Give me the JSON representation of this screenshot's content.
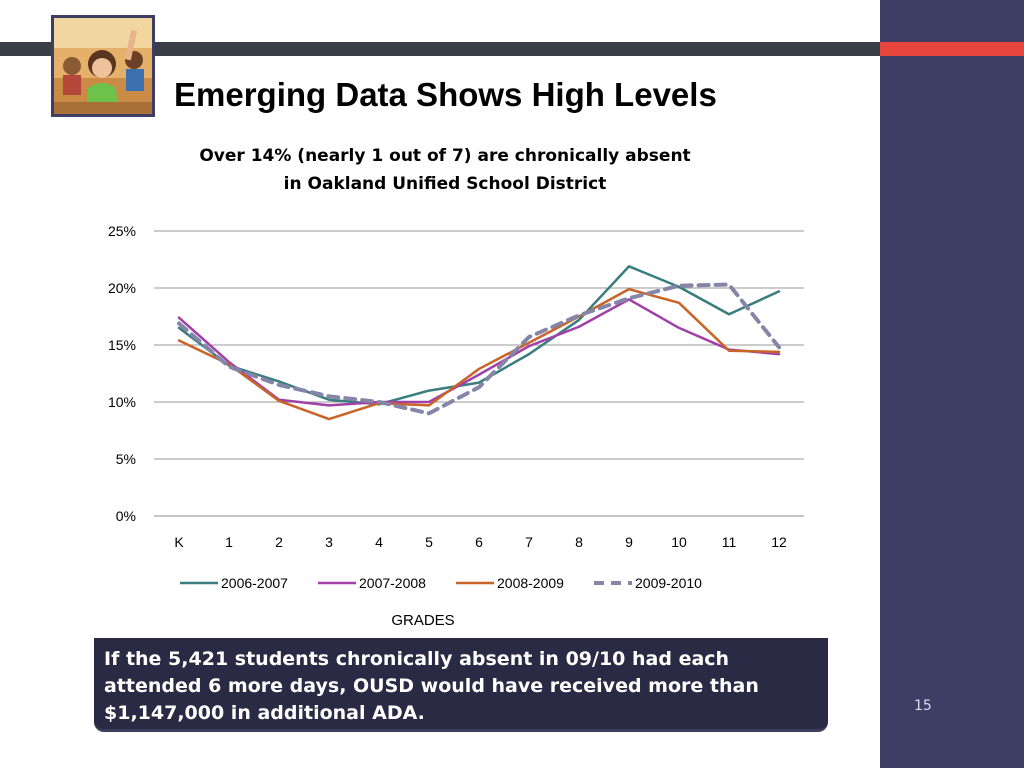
{
  "slide": {
    "title": "Emerging Data Shows High Levels",
    "callout_lines": [
      "If the 5,421 students chronically absent in 09/10 had each",
      "attended 6 more days, OUSD would have received more than",
      "$1,147,000 in additional ADA."
    ],
    "slide_number": "15",
    "photo": "classroom-student-photo",
    "colors": {
      "side_panel": "#3e3d66",
      "top_bar": "#3a3f47",
      "accent": "#e8453c",
      "callout": "#2b2a45"
    }
  },
  "chart_data": {
    "type": "line",
    "title_lines": [
      "Over 14%  (nearly 1 out of 7) are chronically absent",
      "in Oakland Unified School District"
    ],
    "xlabel": "GRADES",
    "ylabel": "",
    "categories": [
      "K",
      "1",
      "2",
      "3",
      "4",
      "5",
      "6",
      "7",
      "8",
      "9",
      "10",
      "11",
      "12"
    ],
    "yticks": [
      "0%",
      "5%",
      "10%",
      "15%",
      "20%",
      "25%"
    ],
    "ylim": [
      0,
      25
    ],
    "grid": true,
    "legend_position": "bottom",
    "series": [
      {
        "name": "2006-2007",
        "color": "#3a7d7e",
        "dash": false,
        "values": [
          16.5,
          13.2,
          11.8,
          10.2,
          9.8,
          11.0,
          11.7,
          14.2,
          17.2,
          21.9,
          20.1,
          17.7,
          19.7
        ]
      },
      {
        "name": "2007-2008",
        "color": "#a040a8",
        "dash": false,
        "values": [
          17.4,
          13.5,
          10.2,
          9.7,
          10.0,
          10.0,
          12.4,
          14.9,
          16.6,
          19.0,
          16.5,
          14.6,
          14.2
        ]
      },
      {
        "name": "2008-2009",
        "color": "#c86428",
        "dash": false,
        "values": [
          15.4,
          13.3,
          10.1,
          8.5,
          9.9,
          9.7,
          12.9,
          15.2,
          17.5,
          19.9,
          18.7,
          14.5,
          14.4
        ]
      },
      {
        "name": "2009-2010",
        "color": "#8585a8",
        "dash": true,
        "values": [
          16.9,
          13.1,
          11.5,
          10.5,
          10.0,
          9.0,
          11.3,
          15.7,
          17.6,
          19.1,
          20.2,
          20.3,
          14.8
        ]
      }
    ]
  }
}
